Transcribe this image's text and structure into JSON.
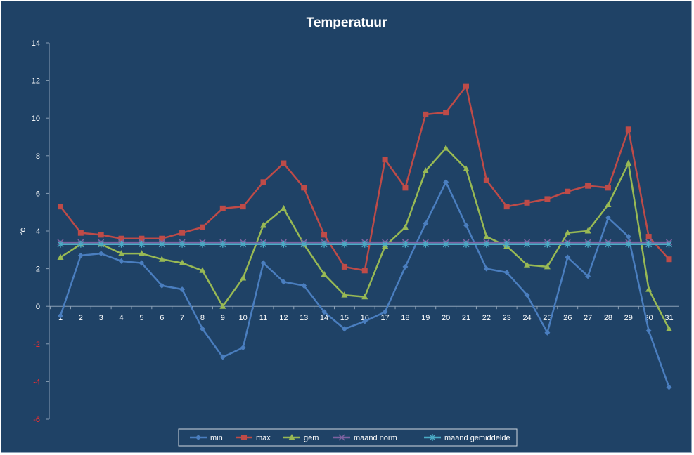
{
  "chart_data": {
    "type": "line",
    "title": "Temperatuur",
    "ylabel": "°c",
    "xlabel": "",
    "ylim": [
      -6,
      14
    ],
    "ytick_step": 2,
    "x": [
      1,
      2,
      3,
      4,
      5,
      6,
      7,
      8,
      9,
      10,
      11,
      12,
      13,
      14,
      15,
      16,
      17,
      18,
      19,
      20,
      21,
      22,
      23,
      24,
      25,
      26,
      27,
      28,
      29,
      30,
      31
    ],
    "negative_tick_color": "#ff2b2b",
    "legend_position": "bottom",
    "grid": false,
    "series": [
      {
        "name": "min",
        "color": "#4a7ebf",
        "marker": "diamond",
        "values": [
          -0.5,
          2.7,
          2.8,
          2.4,
          2.3,
          1.1,
          0.9,
          -1.2,
          -2.7,
          -2.2,
          2.3,
          1.3,
          1.1,
          -0.3,
          -1.2,
          -0.8,
          -0.3,
          2.1,
          4.4,
          6.6,
          4.3,
          2.0,
          1.8,
          0.6,
          -1.4,
          2.6,
          1.6,
          4.7,
          3.7,
          -1.3,
          -4.3
        ]
      },
      {
        "name": "max",
        "color": "#be4b48",
        "marker": "square",
        "values": [
          5.3,
          3.9,
          3.8,
          3.6,
          3.6,
          3.6,
          3.9,
          4.2,
          5.2,
          5.3,
          6.6,
          7.6,
          6.3,
          3.8,
          2.1,
          1.9,
          7.8,
          6.3,
          10.2,
          10.3,
          11.7,
          6.7,
          5.3,
          5.5,
          5.7,
          6.1,
          6.4,
          6.3,
          9.4,
          3.7,
          2.5
        ]
      },
      {
        "name": "gem",
        "color": "#98b954",
        "marker": "triangle",
        "values": [
          2.6,
          3.3,
          3.3,
          2.8,
          2.8,
          2.5,
          2.3,
          1.9,
          0.0,
          1.5,
          4.3,
          5.2,
          3.3,
          1.7,
          0.6,
          0.5,
          3.2,
          4.2,
          7.2,
          8.4,
          7.3,
          3.7,
          3.2,
          2.2,
          2.1,
          3.9,
          4.0,
          5.4,
          7.6,
          0.9,
          -1.2
        ]
      },
      {
        "name": "maand norm",
        "color": "#7e62a1",
        "marker": "x",
        "values": [
          3.4,
          3.4,
          3.4,
          3.4,
          3.4,
          3.4,
          3.4,
          3.4,
          3.4,
          3.4,
          3.4,
          3.4,
          3.4,
          3.4,
          3.4,
          3.4,
          3.4,
          3.4,
          3.4,
          3.4,
          3.4,
          3.4,
          3.4,
          3.4,
          3.4,
          3.4,
          3.4,
          3.4,
          3.4,
          3.4,
          3.4
        ]
      },
      {
        "name": "maand gemiddelde",
        "color": "#4bacc6",
        "marker": "star",
        "values": [
          3.3,
          3.3,
          3.3,
          3.3,
          3.3,
          3.3,
          3.3,
          3.3,
          3.3,
          3.3,
          3.3,
          3.3,
          3.3,
          3.3,
          3.3,
          3.3,
          3.3,
          3.3,
          3.3,
          3.3,
          3.3,
          3.3,
          3.3,
          3.3,
          3.3,
          3.3,
          3.3,
          3.3,
          3.3,
          3.3,
          3.3
        ]
      }
    ]
  }
}
